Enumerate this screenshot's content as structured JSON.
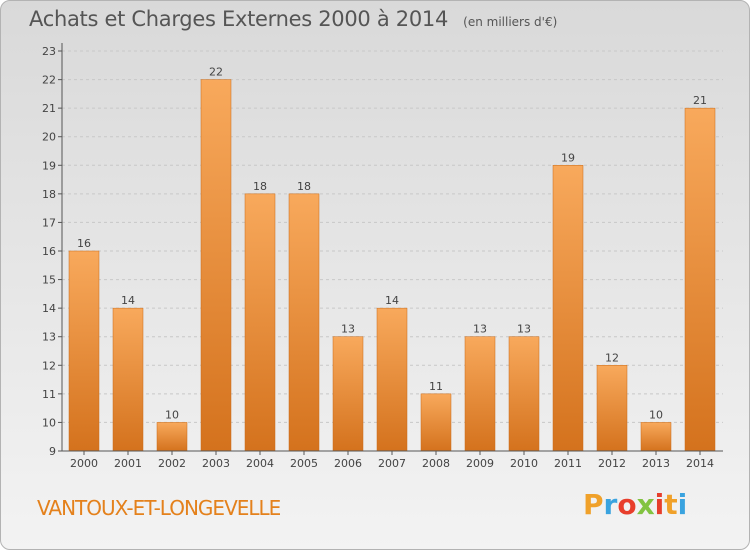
{
  "header": {
    "title": "Achats et Charges Externes 2000 à 2014",
    "subtitle": "(en milliers d'€)"
  },
  "commune": "VANTOUX-ET-LONGEVELLE",
  "logo": {
    "letters": [
      "P",
      "r",
      "o",
      "x",
      "i",
      "t",
      "i"
    ],
    "colors": [
      "#f0a12a",
      "#3aa3df",
      "#e83e2c",
      "#82c341",
      "#e63e2c",
      "#f0a12a",
      "#3aa3df"
    ]
  },
  "colors": {
    "bar_light": "#f8a95c",
    "bar_dark": "#d4721d",
    "axis": "#555555",
    "grid": "#c8c8c8"
  },
  "chart_data": {
    "type": "bar",
    "categories": [
      "2000",
      "2001",
      "2002",
      "2003",
      "2004",
      "2005",
      "2006",
      "2007",
      "2008",
      "2009",
      "2010",
      "2011",
      "2012",
      "2013",
      "2014"
    ],
    "values": [
      16,
      14,
      10,
      22,
      18,
      18,
      13,
      14,
      11,
      13,
      13,
      19,
      12,
      10,
      21
    ],
    "data_labels": [
      "16",
      "14",
      "10",
      "22",
      "18",
      "18",
      "13",
      "14",
      "11",
      "13",
      "13",
      "19",
      "12",
      "10",
      "21"
    ],
    "yticks": [
      "9",
      "10",
      "11",
      "12",
      "13",
      "14",
      "15",
      "16",
      "17",
      "18",
      "19",
      "20",
      "21",
      "22",
      "23"
    ],
    "ylim": [
      9,
      23
    ],
    "title": "Achats et Charges Externes 2000 à 2014",
    "xlabel": "",
    "ylabel": "",
    "grid": true,
    "legend": "none"
  }
}
